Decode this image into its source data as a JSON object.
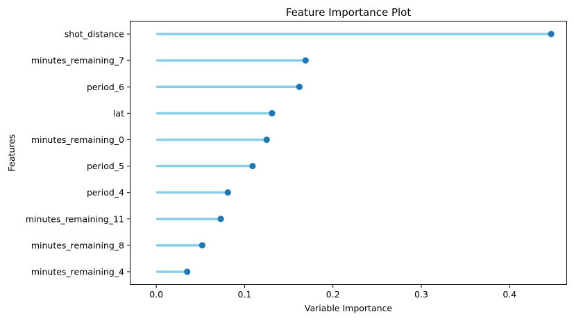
{
  "chart_data": {
    "type": "lollipop",
    "title": "Feature Importance Plot",
    "xlabel": "Variable Importance",
    "ylabel": "Features",
    "xlim": [
      -0.03,
      0.465
    ],
    "xticks": [
      0.0,
      0.1,
      0.2,
      0.3,
      0.4
    ],
    "xtick_labels": [
      "0.0",
      "0.1",
      "0.2",
      "0.3",
      "0.4"
    ],
    "grid": false,
    "categories": [
      "shot_distance",
      "minutes_remaining_7",
      "period_6",
      "lat",
      "minutes_remaining_0",
      "period_5",
      "period_4",
      "minutes_remaining_11",
      "minutes_remaining_8",
      "minutes_remaining_4"
    ],
    "values": [
      0.447,
      0.169,
      0.162,
      0.131,
      0.125,
      0.109,
      0.081,
      0.073,
      0.052,
      0.035
    ],
    "stem_color": "#87ceeb",
    "marker_color": "#1f77b4"
  }
}
